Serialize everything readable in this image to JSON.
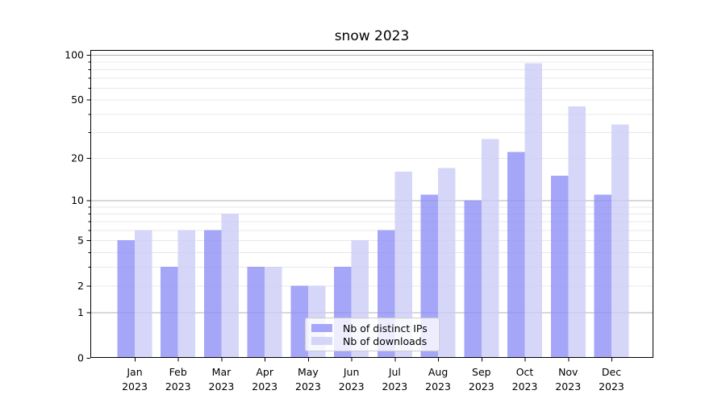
{
  "chart_data": {
    "type": "bar",
    "title": "snow 2023",
    "categories": [
      "Jan",
      "Feb",
      "Mar",
      "Apr",
      "May",
      "Jun",
      "Jul",
      "Aug",
      "Sep",
      "Oct",
      "Nov",
      "Dec"
    ],
    "x_year_label": "2023",
    "series": [
      {
        "name": "Nb of distinct IPs",
        "color": "#9090f8",
        "opacity": 0.8,
        "values": [
          5,
          3,
          6,
          3,
          2,
          3,
          6,
          11,
          10,
          22,
          15,
          11
        ]
      },
      {
        "name": "Nb of downloads",
        "color": "#ccccf8",
        "opacity": 0.8,
        "values": [
          6,
          6,
          8,
          3,
          2,
          5,
          16,
          17,
          27,
          88,
          45,
          34
        ]
      }
    ],
    "yscale": "log1p",
    "ylim": [
      0,
      100
    ],
    "y_tick_labels": [
      0,
      1,
      2,
      5,
      10,
      20,
      50,
      100
    ],
    "y_major_lines": [
      1,
      10,
      100
    ],
    "y_minor_lines": [
      2,
      3,
      4,
      5,
      6,
      7,
      8,
      9,
      20,
      30,
      40,
      50,
      60,
      70,
      80,
      90
    ],
    "grid": true,
    "legend_position": "lower center",
    "colors": {
      "major_grid": "#b0b0b0",
      "minor_grid": "#e8e8e8",
      "axis": "#000000",
      "legend_border": "#cccccc",
      "legend_bg": "rgba(255,255,255,0.8)"
    }
  }
}
